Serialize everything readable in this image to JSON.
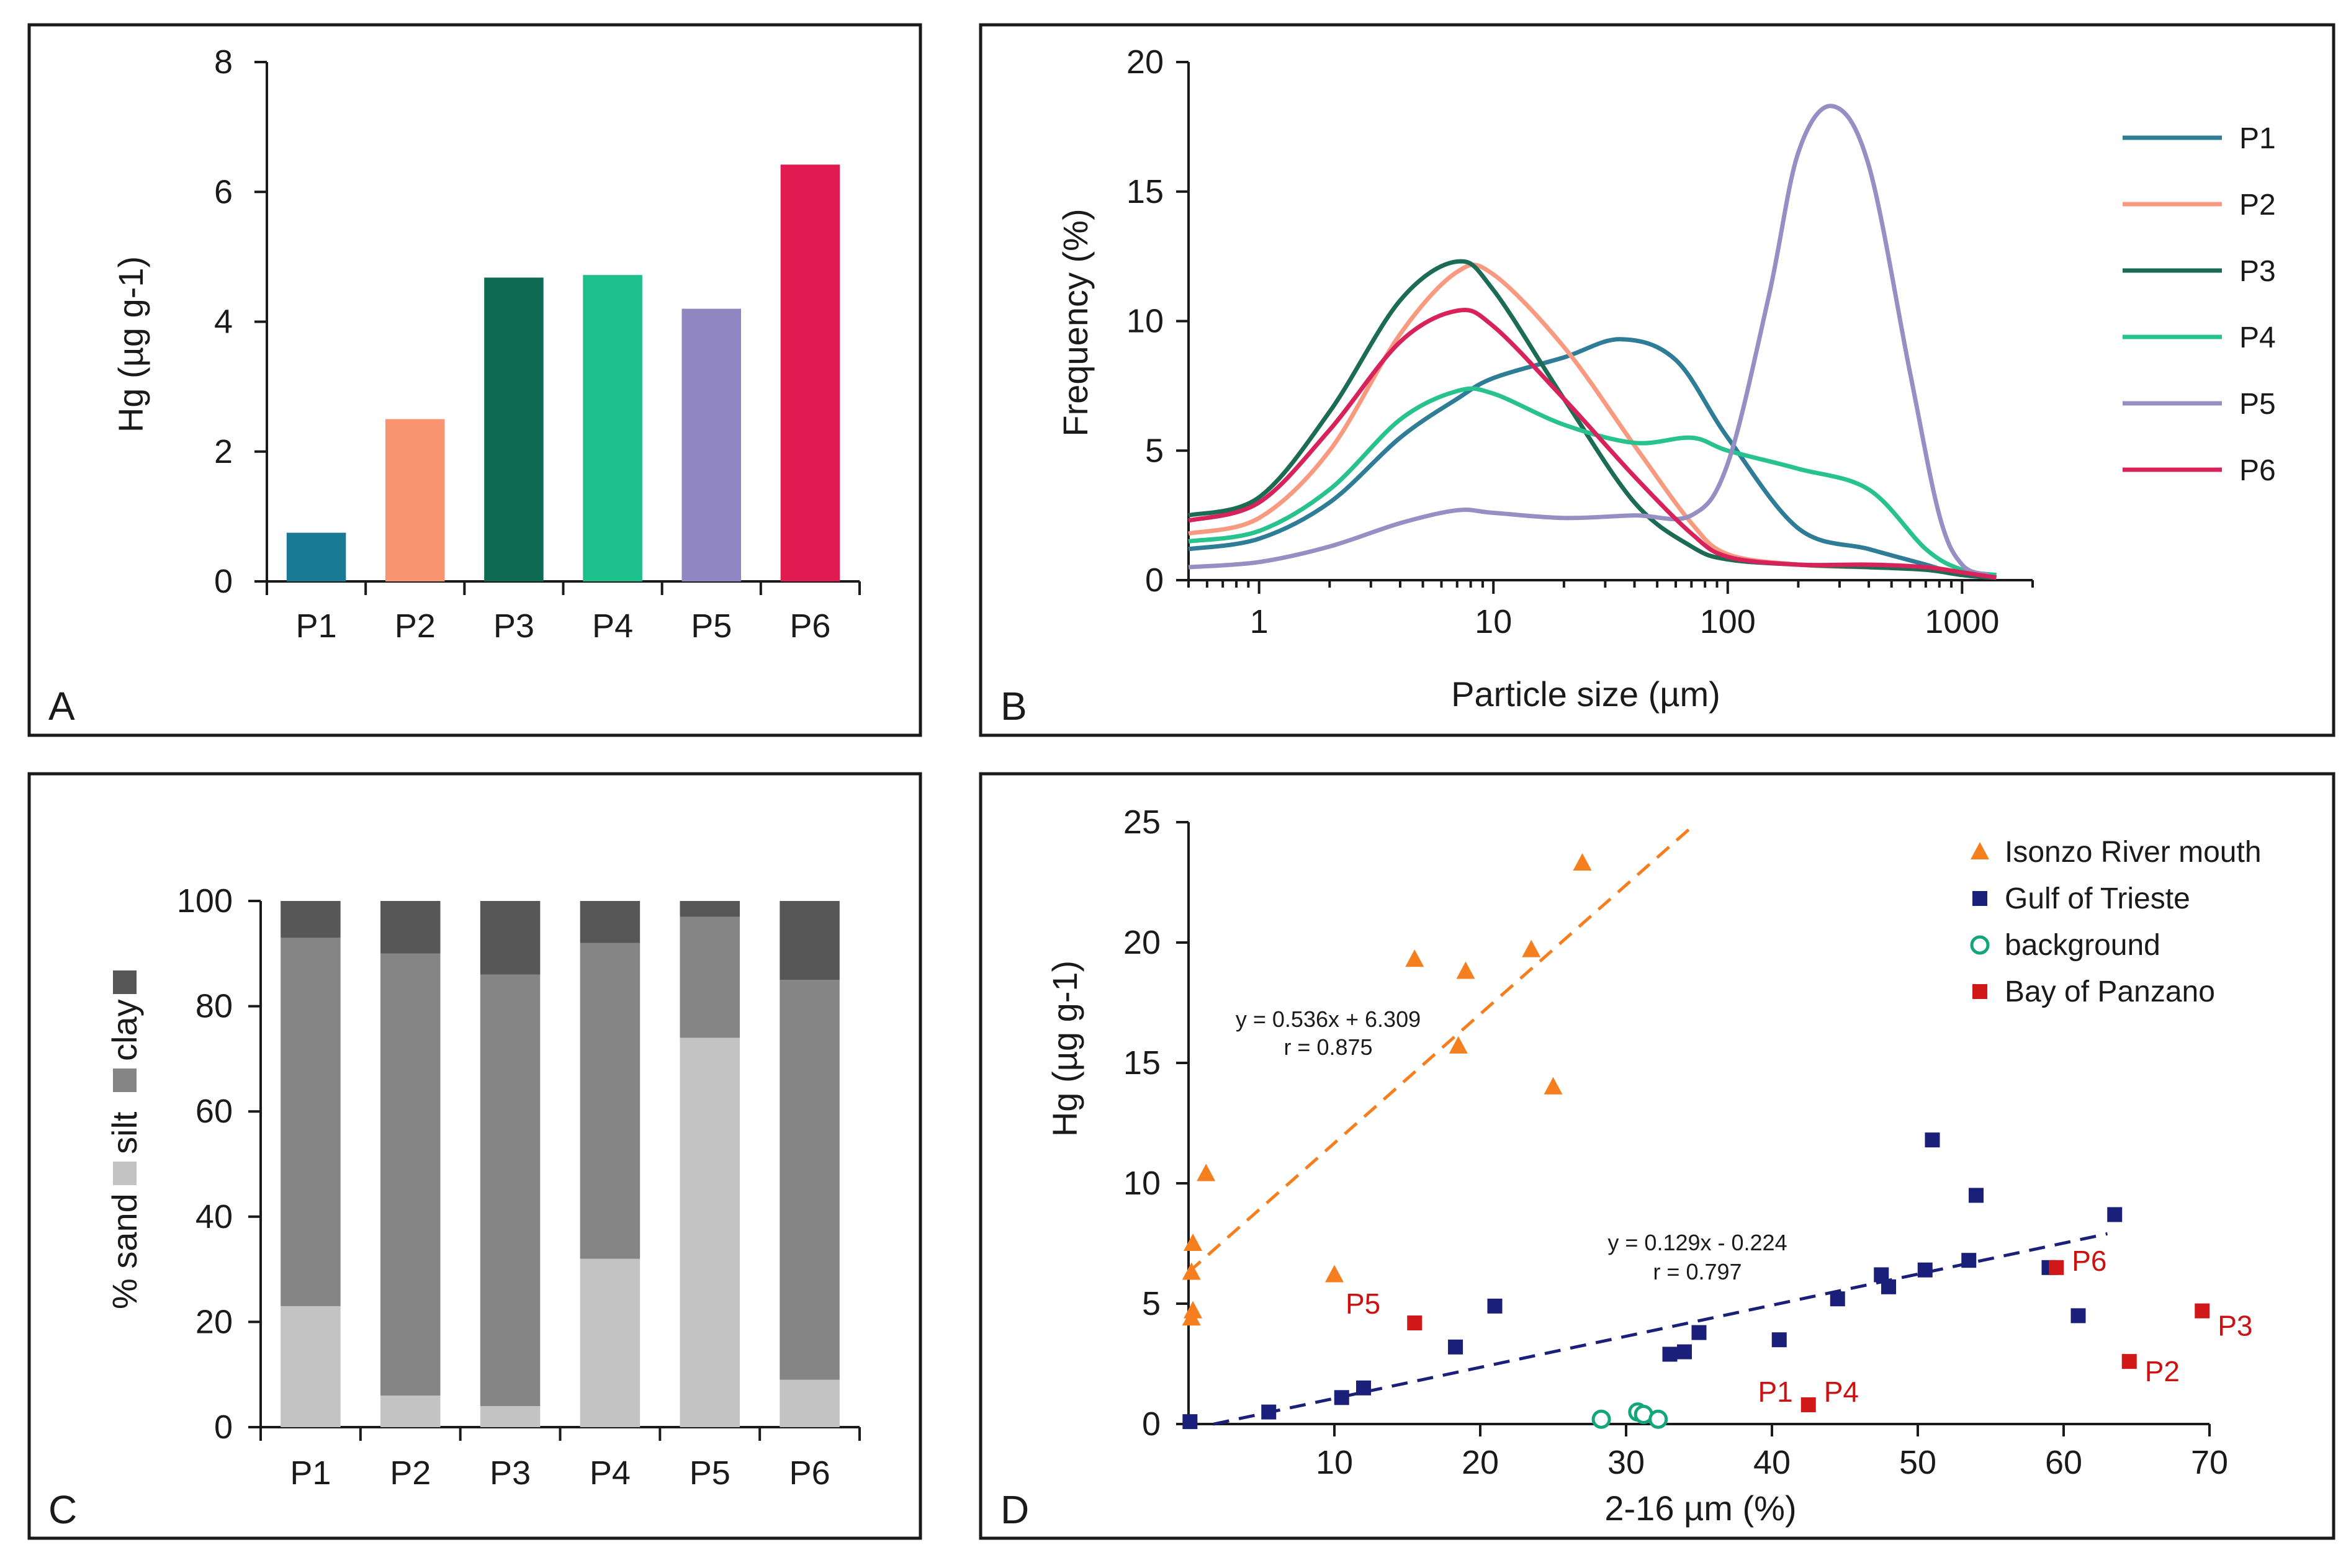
{
  "panels": {
    "A": {
      "letter": "A",
      "chart_data": {
        "type": "bar",
        "ylabel": "Hg (µg g-1)",
        "ylim": [
          0,
          8
        ],
        "yticks": [
          0,
          2,
          4,
          6,
          8
        ],
        "categories": [
          "P1",
          "P2",
          "P3",
          "P4",
          "P5",
          "P6"
        ],
        "values": [
          0.75,
          2.5,
          4.68,
          4.72,
          4.2,
          6.42
        ],
        "colors": [
          "#1a7a93",
          "#f99470",
          "#0e6b52",
          "#1dbf8b",
          "#8f86c2",
          "#e01b52"
        ]
      }
    },
    "B": {
      "letter": "B",
      "chart_data": {
        "type": "line",
        "xscale": "log",
        "xlabel": "Particle size (µm)",
        "ylabel": "Frequency (%)",
        "xlim": [
          0.5,
          2000
        ],
        "ylim": [
          0,
          20
        ],
        "xticks": [
          1,
          10,
          100,
          1000
        ],
        "xtick_labels": [
          "1",
          "10",
          "100",
          "1000"
        ],
        "yticks": [
          0,
          5,
          10,
          15,
          20
        ],
        "series": [
          {
            "name": "P1",
            "color": "#2f7c96",
            "x": [
              0.5,
              1,
              2,
              4,
              7,
              10,
              20,
              35,
              60,
              100,
              200,
              400,
              700,
              1000,
              1400
            ],
            "y": [
              1.2,
              1.6,
              3.0,
              5.5,
              7.0,
              7.8,
              8.6,
              9.3,
              8.5,
              5.5,
              2.0,
              1.2,
              0.6,
              0.2,
              0.1
            ]
          },
          {
            "name": "P2",
            "color": "#f79a80",
            "x": [
              0.5,
              1,
              2,
              4,
              7,
              10,
              20,
              40,
              70,
              100,
              200,
              400,
              700,
              1000,
              1400
            ],
            "y": [
              1.8,
              2.4,
              5.0,
              9.5,
              11.9,
              11.8,
              9.0,
              5.2,
              2.2,
              1.0,
              0.6,
              0.5,
              0.5,
              0.3,
              0.1
            ]
          },
          {
            "name": "P3",
            "color": "#1c6b55",
            "x": [
              0.5,
              1,
              2,
              4,
              7,
              10,
              20,
              40,
              70,
              100,
              200,
              400,
              700,
              1000,
              1400
            ],
            "y": [
              2.5,
              3.2,
              6.5,
              10.8,
              12.3,
              11.2,
              7.0,
              3.0,
              1.3,
              0.8,
              0.6,
              0.5,
              0.4,
              0.2,
              0.1
            ]
          },
          {
            "name": "P4",
            "color": "#28c28f",
            "x": [
              0.5,
              1,
              2,
              4,
              7,
              10,
              20,
              40,
              70,
              100,
              200,
              400,
              700,
              1000,
              1400
            ],
            "y": [
              1.5,
              1.9,
              3.5,
              6.2,
              7.3,
              7.2,
              6.0,
              5.3,
              5.5,
              5.0,
              4.3,
              3.5,
              1.2,
              0.4,
              0.2
            ]
          },
          {
            "name": "P5",
            "color": "#968fc4",
            "x": [
              0.5,
              1,
              2,
              4,
              7,
              10,
              20,
              40,
              70,
              100,
              150,
              200,
              280,
              400,
              600,
              800,
              1000,
              1300
            ],
            "y": [
              0.5,
              0.7,
              1.3,
              2.2,
              2.7,
              2.6,
              2.4,
              2.5,
              2.5,
              4.5,
              11.0,
              16.5,
              18.3,
              16.0,
              8.0,
              2.5,
              0.6,
              0.2
            ]
          },
          {
            "name": "P6",
            "color": "#d8235a",
            "x": [
              0.5,
              1,
              2,
              4,
              7,
              10,
              20,
              40,
              70,
              100,
              200,
              400,
              700,
              1000,
              1400
            ],
            "y": [
              2.3,
              3.0,
              5.8,
              9.2,
              10.4,
              9.8,
              7.0,
              4.0,
              1.8,
              0.9,
              0.6,
              0.6,
              0.5,
              0.3,
              0.1
            ]
          }
        ]
      }
    },
    "C": {
      "letter": "C",
      "chart_data": {
        "type": "bar",
        "stacked": true,
        "ylabel": "% sand  silt  clay",
        "ylabel_parts": [
          "% sand",
          "silt",
          "clay"
        ],
        "ylim": [
          0,
          100
        ],
        "yticks": [
          0,
          20,
          40,
          60,
          80,
          100
        ],
        "categories": [
          "P1",
          "P2",
          "P3",
          "P4",
          "P5",
          "P6"
        ],
        "series": [
          {
            "name": "sand",
            "color": "#c3c3c3",
            "values": [
              23,
              6,
              4,
              32,
              74,
              9
            ]
          },
          {
            "name": "silt",
            "color": "#858585",
            "values": [
              70,
              84,
              82,
              60,
              23,
              76
            ]
          },
          {
            "name": "clay",
            "color": "#575757",
            "values": [
              7,
              10,
              14,
              8,
              3,
              15
            ]
          }
        ]
      }
    },
    "D": {
      "letter": "D",
      "chart_data": {
        "type": "scatter",
        "xlabel": "2-16 µm (%)",
        "ylabel": "Hg (µg g-1)",
        "xlim": [
          0,
          70
        ],
        "ylim": [
          0,
          25
        ],
        "xticks": [
          10,
          20,
          30,
          40,
          50,
          60,
          70
        ],
        "yticks": [
          0,
          5,
          10,
          15,
          20,
          25
        ],
        "series": [
          {
            "name": "Isonzo River mouth",
            "marker": "triangle",
            "color": "#f57f1f",
            "points": [
              [
                0.2,
                4.4
              ],
              [
                0.3,
                4.7
              ],
              [
                0.2,
                6.3
              ],
              [
                0.3,
                7.5
              ],
              [
                1.2,
                10.4
              ],
              [
                10,
                6.2
              ],
              [
                15.5,
                19.3
              ],
              [
                18.5,
                15.7
              ],
              [
                19,
                18.8
              ],
              [
                23.5,
                19.7
              ],
              [
                25,
                14
              ],
              [
                27,
                23.3
              ]
            ]
          },
          {
            "name": "Gulf of Trieste",
            "marker": "square",
            "color": "#1a1f7a",
            "points": [
              [
                0.1,
                0.1
              ],
              [
                5.5,
                0.5
              ],
              [
                10.5,
                1.1
              ],
              [
                12,
                1.5
              ],
              [
                18.3,
                3.2
              ],
              [
                21,
                4.9
              ],
              [
                33,
                2.9
              ],
              [
                34,
                3
              ],
              [
                35,
                3.8
              ],
              [
                40.5,
                3.5
              ],
              [
                44.5,
                5.2
              ],
              [
                47.5,
                6.2
              ],
              [
                48,
                5.7
              ],
              [
                50.5,
                6.4
              ],
              [
                51,
                11.8
              ],
              [
                53.5,
                6.8
              ],
              [
                54,
                9.5
              ],
              [
                59,
                6.5
              ],
              [
                61,
                4.5
              ],
              [
                63.5,
                8.7
              ]
            ]
          },
          {
            "name": "background",
            "marker": "circle-open",
            "color": "#12a67a",
            "points": [
              [
                28.3,
                0.2
              ],
              [
                30.8,
                0.5
              ],
              [
                31.2,
                0.4
              ],
              [
                32.2,
                0.2
              ]
            ]
          },
          {
            "name": "Bay of Panzano",
            "marker": "square",
            "color": "#d01818",
            "points": [
              [
                15.5,
                4.2
              ],
              [
                42.5,
                0.8
              ],
              [
                59.5,
                6.5
              ],
              [
                64.5,
                2.6
              ],
              [
                69.5,
                4.7
              ]
            ]
          }
        ],
        "point_labels": [
          {
            "text": "P5",
            "x": 15.5,
            "y": 4.2
          },
          {
            "text": "P1",
            "x": 42.5,
            "y": 0.8
          },
          {
            "text": "P4",
            "x": 42.5,
            "y": 0.8
          },
          {
            "text": "P6",
            "x": 59.5,
            "y": 6.5
          },
          {
            "text": "P2",
            "x": 64.5,
            "y": 2.6
          },
          {
            "text": "P3",
            "x": 69.5,
            "y": 4.7
          }
        ],
        "fits": [
          {
            "equation": "y = 0.536x + 6.309",
            "r": "r = 0.875",
            "slope": 0.536,
            "intercept": 6.309,
            "x_range": [
              0,
              34.5
            ],
            "color": "#f57f1f"
          },
          {
            "equation": "y = 0.129x - 0.224",
            "r": "r = 0.797",
            "slope": 0.129,
            "intercept": -0.224,
            "x_range": [
              1.7,
              63
            ],
            "color": "#1a1f7a"
          }
        ]
      }
    }
  }
}
